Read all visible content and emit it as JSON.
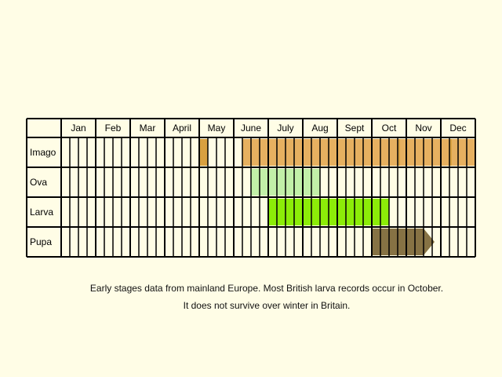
{
  "chart_data": {
    "type": "table",
    "title": "",
    "months": [
      "Jan",
      "Feb",
      "Mar",
      "April",
      "May",
      "June",
      "July",
      "Aug",
      "Sept",
      "Oct",
      "Nov",
      "Dec"
    ],
    "weeks_per_month": 4,
    "stages": [
      "Imago",
      "Ova",
      "Larva",
      "Pupa"
    ],
    "colors": {
      "Imago": "#e6b060",
      "Imago_dark": "#d9a040",
      "Ova": "#c2f0a8",
      "Larva": "#8ced08",
      "Pupa": "#7f6a3b",
      "grid": "#000000",
      "background": "#fffde6"
    },
    "series": [
      {
        "name": "Imago",
        "ranges": [
          {
            "start_month": "May",
            "start_week": 1,
            "end_week": 1,
            "style": "dark"
          },
          {
            "start_month": "June",
            "start_week": 2,
            "end_month": "Dec",
            "end_week": 4
          }
        ]
      },
      {
        "name": "Ova",
        "ranges": [
          {
            "start_month": "June",
            "start_week": 3,
            "end_month": "Aug",
            "end_week": 2
          }
        ]
      },
      {
        "name": "Larva",
        "ranges": [
          {
            "start_month": "July",
            "start_week": 1,
            "end_month": "Oct",
            "end_week": 2
          }
        ]
      },
      {
        "name": "Pupa",
        "ranges": [
          {
            "start_month": "Oct",
            "start_week": 1,
            "end_month": "Nov",
            "end_week": 2
          }
        ]
      }
    ]
  },
  "caption_line1": "Early stages data from mainland Europe. Most British larva records occur in October.",
  "caption_line2": "It does not survive over winter in Britain."
}
